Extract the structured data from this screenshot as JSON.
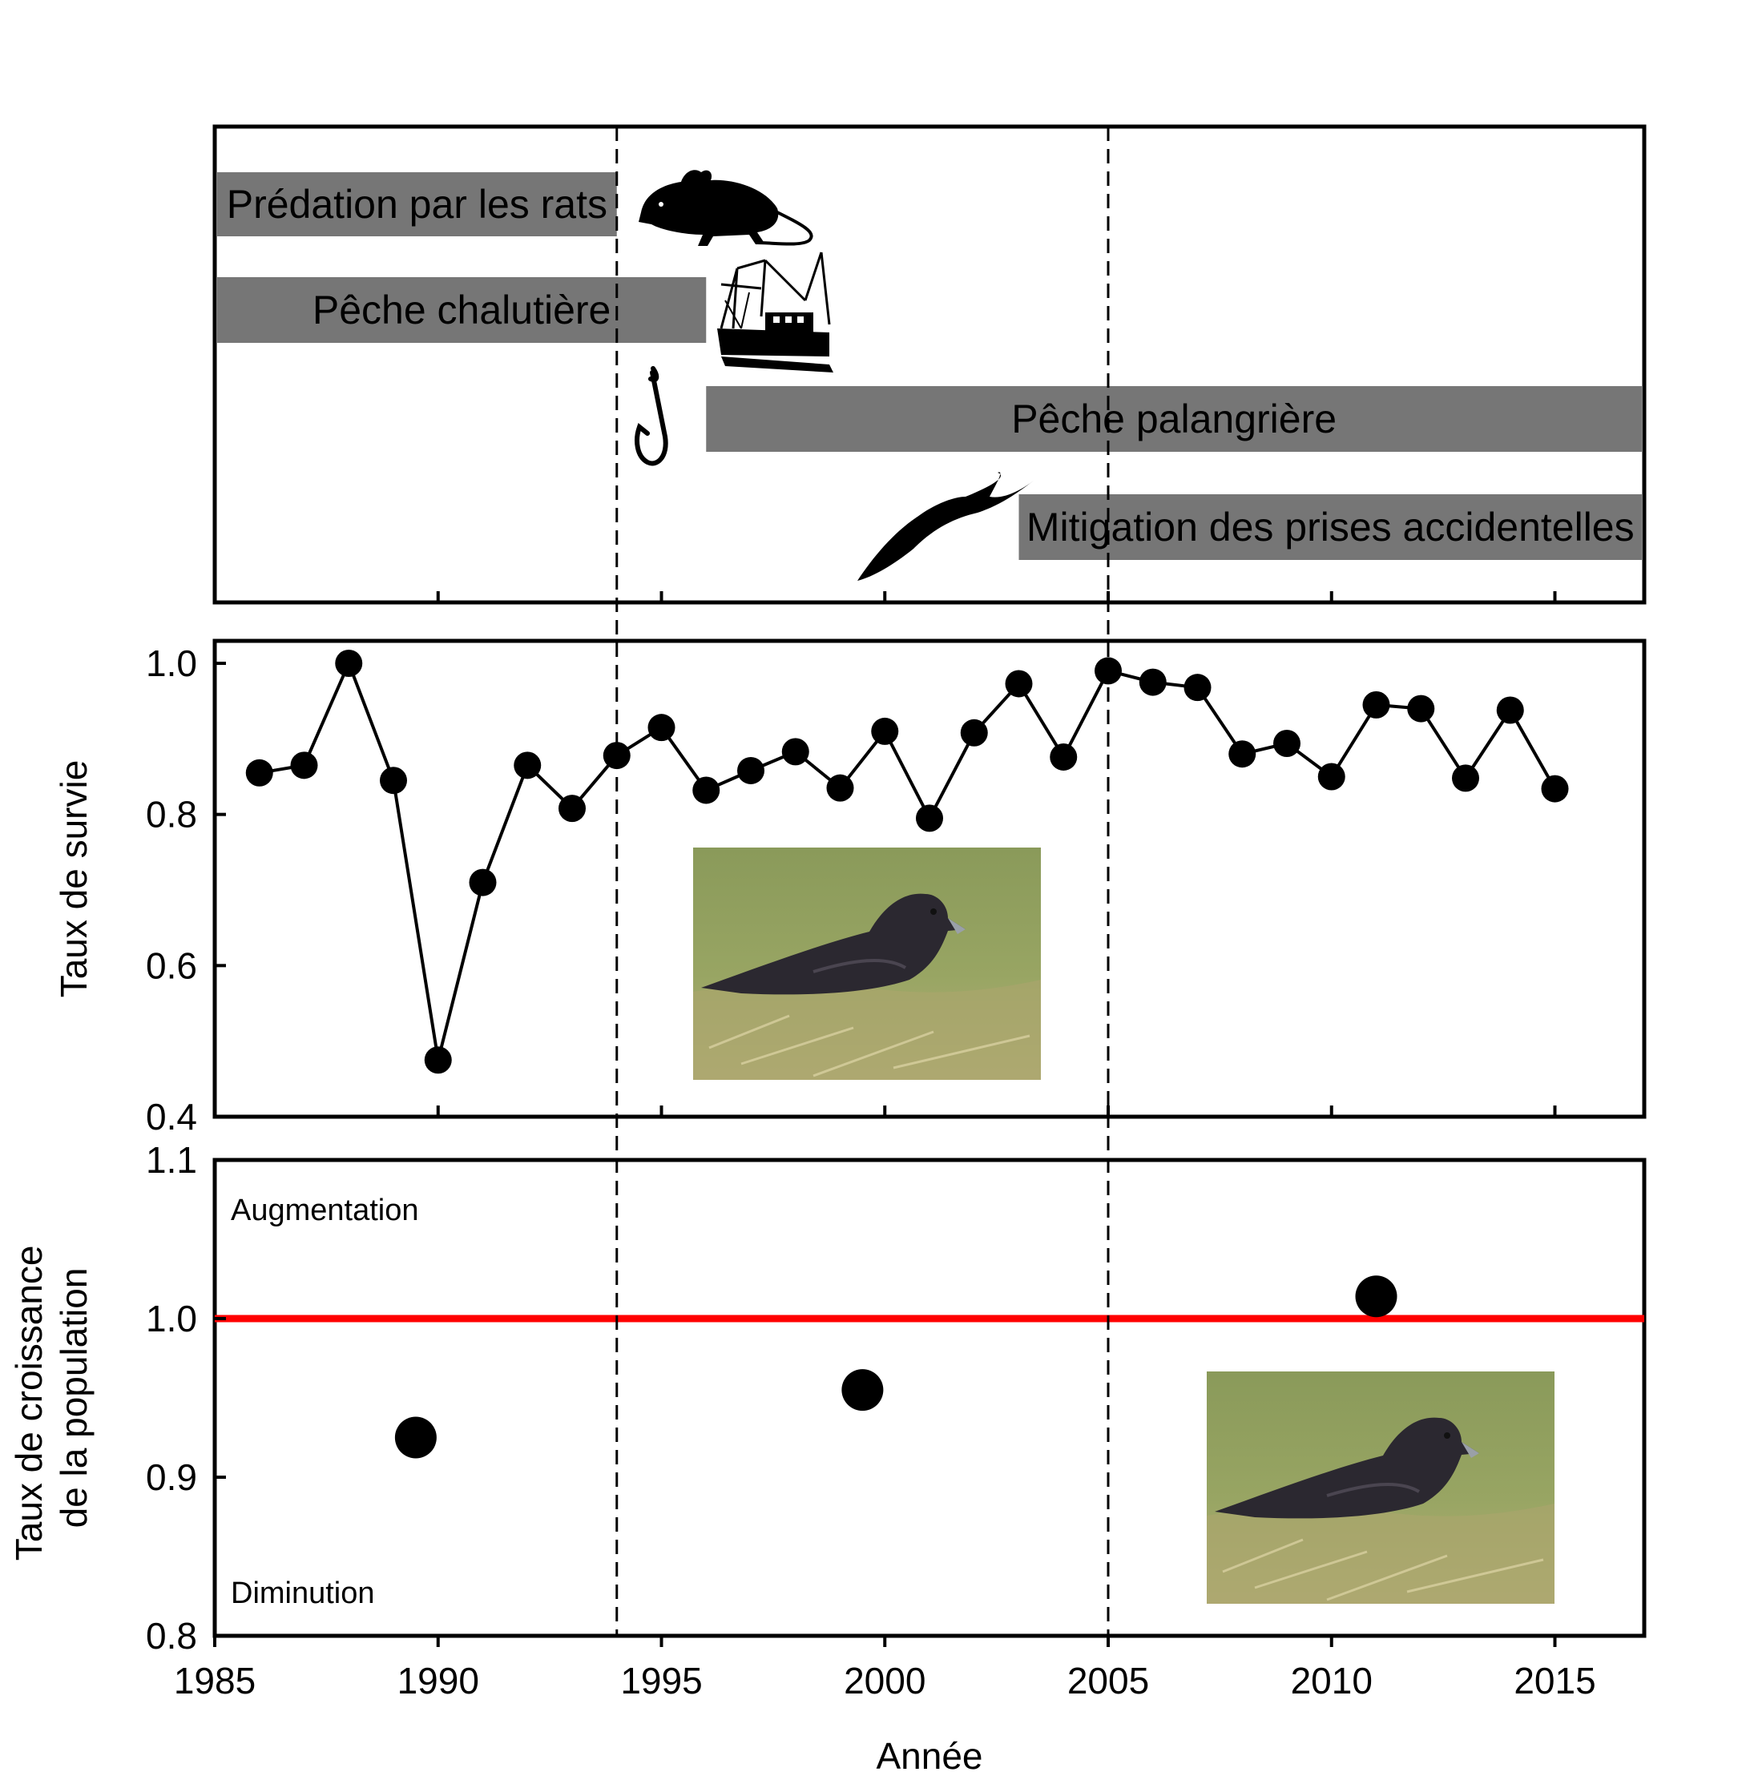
{
  "x_axis": {
    "label": "Année",
    "ticks": [
      1985,
      1990,
      1995,
      2000,
      2005,
      2010,
      2015
    ],
    "range": [
      1985,
      2017
    ]
  },
  "reference_lines": {
    "vertical_years": [
      1994,
      2005
    ],
    "style": "dashed"
  },
  "chart_data": [
    {
      "type": "timeline",
      "panel": "pressures",
      "bars": [
        {
          "label": "Prédation par les rats",
          "start": 1985,
          "end": 1994,
          "icon": "rat-icon"
        },
        {
          "label": "Pêche chalutière",
          "start": 1985,
          "end": 1996,
          "icon": "trawler-icon"
        },
        {
          "label": "Pêche palangrière",
          "start": 1996,
          "end": 2017,
          "icon": "fishing-hook-icon"
        },
        {
          "label": "Mitigation des prises accidentelles",
          "start": 2003,
          "end": 2017,
          "icon": "seabird-icon"
        }
      ],
      "bar_color": "#767676"
    },
    {
      "type": "line",
      "panel": "survival",
      "ylabel": "Taux de survie",
      "ylim": [
        0.4,
        1.0
      ],
      "yticks": [
        "0.4",
        "0.6",
        "0.8",
        "1.0"
      ],
      "x": [
        1986,
        1987,
        1988,
        1989,
        1990,
        1991,
        1992,
        1993,
        1994,
        1995,
        1996,
        1997,
        1998,
        1999,
        2000,
        2001,
        2002,
        2003,
        2004,
        2005,
        2006,
        2007,
        2008,
        2009,
        2010,
        2011,
        2012,
        2013,
        2014,
        2015
      ],
      "y": [
        0.855,
        0.865,
        1.0,
        0.845,
        0.475,
        0.71,
        0.865,
        0.808,
        0.878,
        0.915,
        0.832,
        0.858,
        0.883,
        0.835,
        0.91,
        0.795,
        0.908,
        0.973,
        0.876,
        0.99,
        0.975,
        0.968,
        0.88,
        0.894,
        0.85,
        0.945,
        0.94,
        0.848,
        0.938,
        0.834
      ]
    },
    {
      "type": "scatter",
      "panel": "growth",
      "ylabel": [
        "Taux de croissance",
        "de la population"
      ],
      "ylim": [
        0.8,
        1.1
      ],
      "yticks": [
        "0.8",
        "0.9",
        "1.0",
        "1.1"
      ],
      "x": [
        1989.5,
        1999.5,
        2011
      ],
      "y": [
        0.925,
        0.955,
        1.014
      ],
      "reference_y": 1.0,
      "reference_color": "#ff0000",
      "annotations": {
        "above": "Augmentation",
        "below": "Diminution"
      }
    }
  ]
}
